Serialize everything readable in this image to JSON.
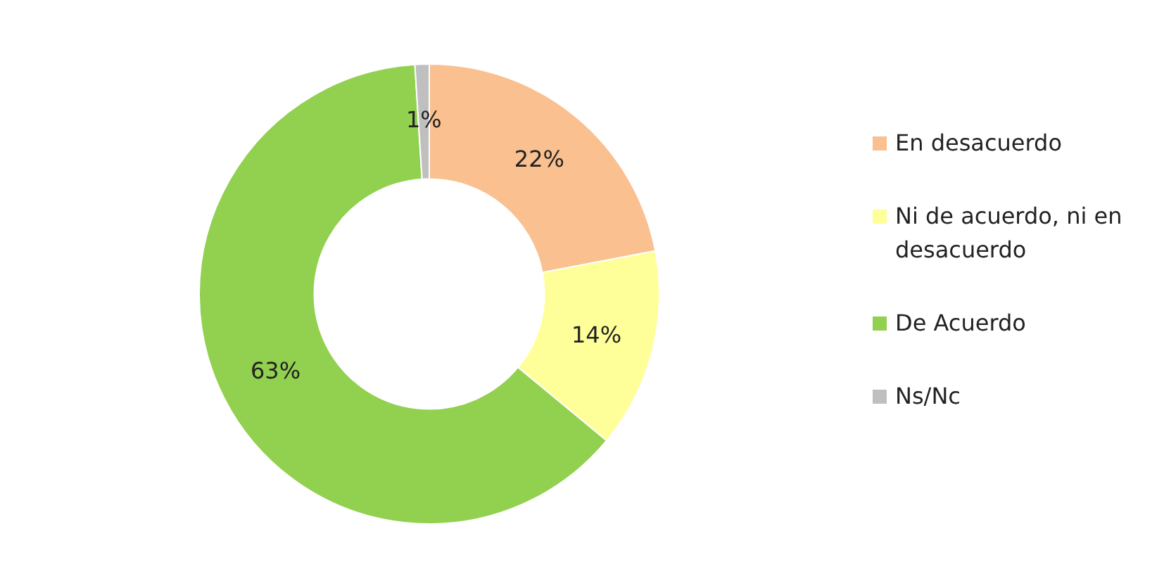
{
  "chart_data": {
    "type": "donut",
    "categories": [
      "En desacuerdo",
      "Ni de acuerdo, ni en desacuerdo",
      "De Acuerdo",
      "Ns/Nc"
    ],
    "values": [
      22,
      14,
      63,
      1
    ],
    "colors": [
      "#fac090",
      "#ffff99",
      "#92d050",
      "#bfbfbf"
    ],
    "value_labels": [
      "22%",
      "14%",
      "63%",
      "1%"
    ],
    "legend": "right"
  }
}
